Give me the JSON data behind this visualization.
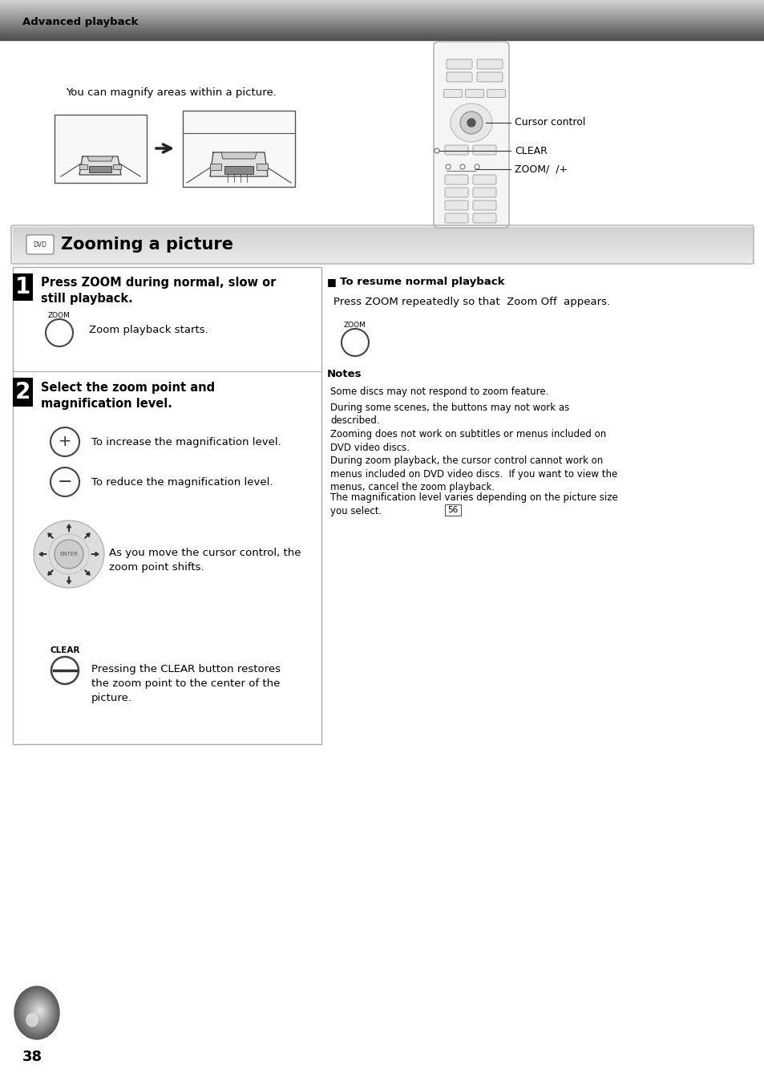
{
  "page_bg": "#ffffff",
  "header_text": "Advanced playback",
  "page_number": "38",
  "section_title": "Zooming a picture",
  "step1_heading": "Press ZOOM during normal, slow or\nstill playback.",
  "step1_body": "Zoom playback starts.",
  "step2_heading": "Select the zoom point and\nmagnification level.",
  "step2_plus_text": "To increase the magnification level.",
  "step2_minus_text": "To reduce the magnification level.",
  "step2_cursor_text": "As you move the cursor control, the\nzoom point shifts.",
  "step2_clear_text": "Pressing the CLEAR button restores\nthe zoom point to the center of the\npicture.",
  "resume_heading": "To resume normal playback",
  "resume_body": "Press ZOOM repeatedly so that  Zoom Off  appears.",
  "notes_heading": "Notes",
  "notes_lines": [
    "Some discs may not respond to zoom feature.",
    "During some scenes, the buttons may not work as\ndescribed.",
    "Zooming does not work on subtitles or menus included on\nDVD video discs.",
    "During zoom playback, the cursor control cannot work on\nmenus included on DVD video discs.  If you want to view the\nmenus, cancel the zoom playback.",
    "The magnification level varies depending on the picture size\nyou select."
  ],
  "intro_text": "You can magnify areas within a picture.",
  "cursor_label": "Cursor control",
  "clear_label": "CLEAR",
  "zoom_label": "ZOOM/  /+"
}
